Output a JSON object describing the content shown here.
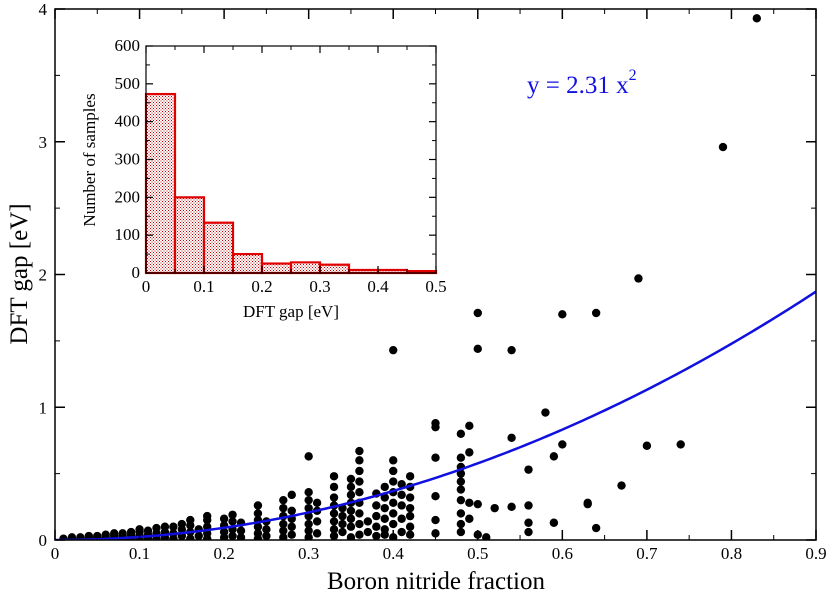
{
  "chart_data": [
    {
      "type": "scatter",
      "xlabel": "Boron nitride fraction",
      "ylabel": "DFT gap [eV]",
      "xlim": [
        0,
        0.9
      ],
      "ylim": [
        0,
        4
      ],
      "xticks": [
        "0",
        "0.1",
        "0.2",
        "0.3",
        "0.4",
        "0.5",
        "0.6",
        "0.7",
        "0.8",
        "0.9"
      ],
      "yticks": [
        "0",
        "1",
        "2",
        "3",
        "4"
      ],
      "fit": {
        "label_base": "y = 2.31 x",
        "label_exp": "2",
        "coefficient": 2.31,
        "power": 2,
        "color": "#1010e0"
      },
      "point_color": "#000000",
      "points": [
        [
          0.01,
          0.01
        ],
        [
          0.02,
          0.01
        ],
        [
          0.02,
          0.02
        ],
        [
          0.03,
          0.01
        ],
        [
          0.03,
          0.02
        ],
        [
          0.04,
          0.01
        ],
        [
          0.04,
          0.02
        ],
        [
          0.04,
          0.03
        ],
        [
          0.05,
          0.01
        ],
        [
          0.05,
          0.02
        ],
        [
          0.05,
          0.03
        ],
        [
          0.06,
          0.01
        ],
        [
          0.06,
          0.02
        ],
        [
          0.06,
          0.04
        ],
        [
          0.07,
          0.01
        ],
        [
          0.07,
          0.03
        ],
        [
          0.07,
          0.05
        ],
        [
          0.08,
          0.01
        ],
        [
          0.08,
          0.03
        ],
        [
          0.08,
          0.05
        ],
        [
          0.09,
          0.01
        ],
        [
          0.09,
          0.04
        ],
        [
          0.09,
          0.06
        ],
        [
          0.1,
          0.01
        ],
        [
          0.1,
          0.03
        ],
        [
          0.1,
          0.06
        ],
        [
          0.1,
          0.08
        ],
        [
          0.11,
          0.01
        ],
        [
          0.11,
          0.04
        ],
        [
          0.11,
          0.07
        ],
        [
          0.12,
          0.01
        ],
        [
          0.12,
          0.05
        ],
        [
          0.12,
          0.09
        ],
        [
          0.13,
          0.02
        ],
        [
          0.13,
          0.06
        ],
        [
          0.13,
          0.1
        ],
        [
          0.14,
          0.01
        ],
        [
          0.14,
          0.05
        ],
        [
          0.14,
          0.1
        ],
        [
          0.15,
          0.03
        ],
        [
          0.15,
          0.08
        ],
        [
          0.15,
          0.12
        ],
        [
          0.16,
          0.01
        ],
        [
          0.16,
          0.06
        ],
        [
          0.16,
          0.11
        ],
        [
          0.16,
          0.15
        ],
        [
          0.17,
          0.03
        ],
        [
          0.17,
          0.08
        ],
        [
          0.18,
          0.01
        ],
        [
          0.18,
          0.05
        ],
        [
          0.18,
          0.1
        ],
        [
          0.18,
          0.15
        ],
        [
          0.18,
          0.18
        ],
        [
          0.2,
          0.02
        ],
        [
          0.2,
          0.06
        ],
        [
          0.2,
          0.11
        ],
        [
          0.2,
          0.16
        ],
        [
          0.21,
          0.03
        ],
        [
          0.21,
          0.08
        ],
        [
          0.21,
          0.14
        ],
        [
          0.21,
          0.19
        ],
        [
          0.22,
          0.02
        ],
        [
          0.22,
          0.07
        ],
        [
          0.22,
          0.13
        ],
        [
          0.24,
          0.01
        ],
        [
          0.24,
          0.05
        ],
        [
          0.24,
          0.1
        ],
        [
          0.24,
          0.15
        ],
        [
          0.24,
          0.2
        ],
        [
          0.24,
          0.26
        ],
        [
          0.25,
          0.03
        ],
        [
          0.25,
          0.08
        ],
        [
          0.25,
          0.14
        ],
        [
          0.27,
          0.02
        ],
        [
          0.27,
          0.07
        ],
        [
          0.27,
          0.12
        ],
        [
          0.27,
          0.18
        ],
        [
          0.27,
          0.24
        ],
        [
          0.27,
          0.3
        ],
        [
          0.28,
          0.04
        ],
        [
          0.28,
          0.1
        ],
        [
          0.28,
          0.16
        ],
        [
          0.28,
          0.22
        ],
        [
          0.28,
          0.34
        ],
        [
          0.3,
          0.02
        ],
        [
          0.3,
          0.07
        ],
        [
          0.3,
          0.12
        ],
        [
          0.3,
          0.18
        ],
        [
          0.3,
          0.24
        ],
        [
          0.3,
          0.3
        ],
        [
          0.3,
          0.36
        ],
        [
          0.3,
          0.63
        ],
        [
          0.31,
          0.05
        ],
        [
          0.31,
          0.14
        ],
        [
          0.31,
          0.22
        ],
        [
          0.31,
          0.28
        ],
        [
          0.33,
          0.03
        ],
        [
          0.33,
          0.08
        ],
        [
          0.33,
          0.14
        ],
        [
          0.33,
          0.2
        ],
        [
          0.33,
          0.26
        ],
        [
          0.33,
          0.32
        ],
        [
          0.33,
          0.4
        ],
        [
          0.33,
          0.48
        ],
        [
          0.34,
          0.06
        ],
        [
          0.34,
          0.12
        ],
        [
          0.34,
          0.18
        ],
        [
          0.34,
          0.24
        ],
        [
          0.35,
          0.02
        ],
        [
          0.35,
          0.1
        ],
        [
          0.35,
          0.16
        ],
        [
          0.35,
          0.22
        ],
        [
          0.35,
          0.28
        ],
        [
          0.35,
          0.34
        ],
        [
          0.35,
          0.4
        ],
        [
          0.35,
          0.46
        ],
        [
          0.36,
          0.04
        ],
        [
          0.36,
          0.12
        ],
        [
          0.36,
          0.2
        ],
        [
          0.36,
          0.28
        ],
        [
          0.36,
          0.36
        ],
        [
          0.36,
          0.44
        ],
        [
          0.36,
          0.52
        ],
        [
          0.36,
          0.6
        ],
        [
          0.36,
          0.67
        ],
        [
          0.37,
          0.06
        ],
        [
          0.37,
          0.14
        ],
        [
          0.38,
          0.03
        ],
        [
          0.38,
          0.1
        ],
        [
          0.38,
          0.18
        ],
        [
          0.38,
          0.26
        ],
        [
          0.38,
          0.35
        ],
        [
          0.39,
          0.08
        ],
        [
          0.39,
          0.16
        ],
        [
          0.39,
          0.24
        ],
        [
          0.39,
          0.32
        ],
        [
          0.39,
          0.4
        ],
        [
          0.39,
          0.04
        ],
        [
          0.4,
          0.02
        ],
        [
          0.4,
          0.12
        ],
        [
          0.4,
          0.2
        ],
        [
          0.4,
          0.28
        ],
        [
          0.4,
          0.36
        ],
        [
          0.4,
          0.44
        ],
        [
          0.4,
          0.52
        ],
        [
          0.4,
          0.6
        ],
        [
          0.4,
          1.43
        ],
        [
          0.41,
          0.06
        ],
        [
          0.41,
          0.16
        ],
        [
          0.41,
          0.26
        ],
        [
          0.41,
          0.34
        ],
        [
          0.41,
          0.42
        ],
        [
          0.42,
          0.04
        ],
        [
          0.42,
          0.1
        ],
        [
          0.42,
          0.18
        ],
        [
          0.42,
          0.24
        ],
        [
          0.42,
          0.32
        ],
        [
          0.42,
          0.4
        ],
        [
          0.42,
          0.48
        ],
        [
          0.45,
          0.05
        ],
        [
          0.45,
          0.15
        ],
        [
          0.45,
          0.33
        ],
        [
          0.45,
          0.62
        ],
        [
          0.45,
          0.85
        ],
        [
          0.45,
          0.88
        ],
        [
          0.48,
          0.06
        ],
        [
          0.48,
          0.12
        ],
        [
          0.48,
          0.2
        ],
        [
          0.48,
          0.3
        ],
        [
          0.48,
          0.38
        ],
        [
          0.48,
          0.44
        ],
        [
          0.48,
          0.5
        ],
        [
          0.48,
          0.55
        ],
        [
          0.48,
          0.62
        ],
        [
          0.48,
          0.8
        ],
        [
          0.49,
          0.16
        ],
        [
          0.49,
          0.28
        ],
        [
          0.49,
          0.66
        ],
        [
          0.49,
          0.86
        ],
        [
          0.5,
          0.04
        ],
        [
          0.5,
          0.27
        ],
        [
          0.5,
          1.44
        ],
        [
          0.5,
          1.71
        ],
        [
          0.51,
          0.02
        ],
        [
          0.52,
          0.24
        ],
        [
          0.54,
          0.25
        ],
        [
          0.54,
          0.77
        ],
        [
          0.54,
          1.43
        ],
        [
          0.56,
          0.06
        ],
        [
          0.56,
          0.13
        ],
        [
          0.56,
          0.26
        ],
        [
          0.56,
          0.53
        ],
        [
          0.58,
          0.96
        ],
        [
          0.59,
          0.13
        ],
        [
          0.59,
          0.63
        ],
        [
          0.6,
          0.72
        ],
        [
          0.6,
          1.7
        ],
        [
          0.63,
          0.27
        ],
        [
          0.63,
          0.28
        ],
        [
          0.64,
          0.09
        ],
        [
          0.64,
          1.71
        ],
        [
          0.67,
          0.41
        ],
        [
          0.69,
          1.97
        ],
        [
          0.7,
          0.71
        ],
        [
          0.74,
          0.72
        ],
        [
          0.79,
          2.96
        ],
        [
          0.83,
          3.93
        ]
      ]
    },
    {
      "type": "bar",
      "title": "",
      "xlabel": "DFT gap [eV]",
      "ylabel": "Number of samples",
      "xlim": [
        0,
        0.5
      ],
      "ylim": [
        0,
        600
      ],
      "xticks": [
        "0",
        "0.1",
        "0.2",
        "0.3",
        "0.4",
        "0.5"
      ],
      "yticks": [
        "0",
        "100",
        "200",
        "300",
        "400",
        "500",
        "600"
      ],
      "bin_width": 0.05,
      "bins": [
        0,
        0.05,
        0.1,
        0.15,
        0.2,
        0.25,
        0.3,
        0.35,
        0.4,
        0.45
      ],
      "values": [
        473,
        200,
        133,
        50,
        25,
        28,
        22,
        8,
        8,
        5
      ],
      "color": "#e00000"
    }
  ]
}
